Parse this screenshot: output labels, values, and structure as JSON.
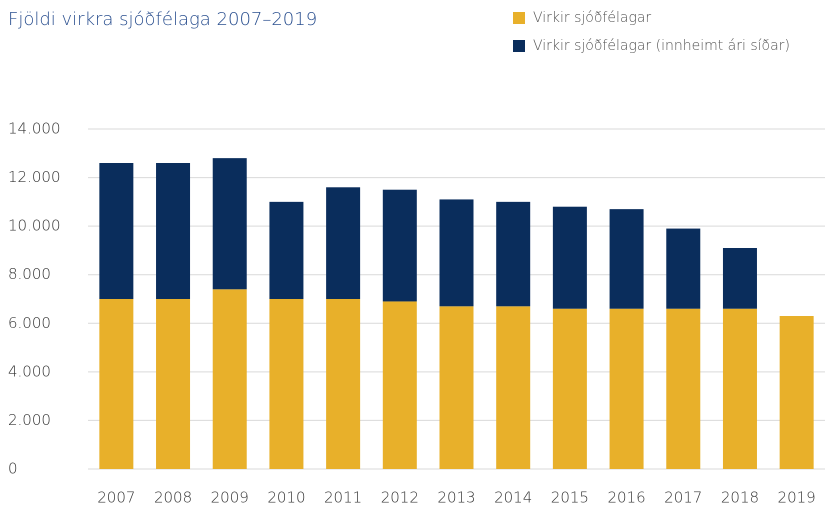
{
  "chart_data": {
    "type": "stacked-bar",
    "title": "Fjöldi virkra sjóðfélaga 2007–2019",
    "categories": [
      "2007",
      "2008",
      "2009",
      "2010",
      "2011",
      "2012",
      "2013",
      "2014",
      "2015",
      "2016",
      "2017",
      "2018",
      "2019"
    ],
    "series": [
      {
        "name": "Virkir sjóðfélagar",
        "color": "#e8b02a",
        "values": [
          7000,
          7000,
          7400,
          7000,
          7000,
          6900,
          6700,
          6700,
          6600,
          6600,
          6600,
          6600,
          6300
        ]
      },
      {
        "name": "Virkir sjóðfélagar (innheimt ári síðar)",
        "color": "#0a2d5c",
        "values": [
          5600,
          5600,
          5400,
          4000,
          4600,
          4600,
          4400,
          4300,
          4200,
          4100,
          3300,
          2500,
          null
        ]
      }
    ],
    "ylim": [
      0,
      14000
    ],
    "yticks": [
      0,
      {
        "value": 2000,
        "label": "2.000"
      },
      {
        "value": 4000,
        "label": "4.000"
      },
      {
        "value": 6000,
        "label": "6.000"
      },
      {
        "value": 8000,
        "label": "8.000"
      },
      {
        "value": 10000,
        "label": "10.000"
      },
      {
        "value": 12000,
        "label": "12.000"
      },
      {
        "value": 14000,
        "label": "14.000"
      }
    ],
    "grid": true,
    "legend": "top-right"
  }
}
